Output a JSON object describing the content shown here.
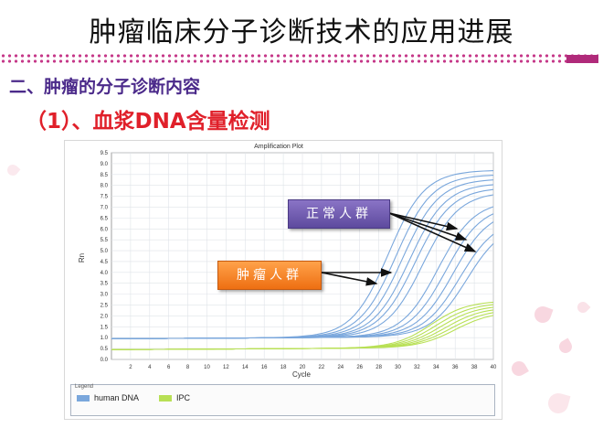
{
  "slide": {
    "title": "肿瘤临床分子诊断技术的应用进展",
    "heading": "二、肿瘤的分子诊断内容",
    "subheading": "（1）、血浆DNA含量检测",
    "accent_color": "#b02a7a"
  },
  "callouts": {
    "normal_label": "正常人群",
    "tumor_label": "肿瘤人群"
  },
  "chart_data": {
    "type": "line",
    "title": "Amplification Plot",
    "xlabel": "Cycle",
    "ylabel": "Rn",
    "xlim": [
      0,
      40
    ],
    "ylim": [
      0,
      9.5
    ],
    "x_ticks": [
      "2",
      "4",
      "6",
      "8",
      "10",
      "12",
      "14",
      "16",
      "18",
      "20",
      "22",
      "24",
      "26",
      "28",
      "30",
      "32",
      "34",
      "36",
      "38",
      "40"
    ],
    "y_ticks": [
      "0.0",
      "0.5",
      "1.0",
      "1.5",
      "2.0",
      "2.5",
      "3.0",
      "3.5",
      "4.0",
      "4.5",
      "5.0",
      "5.5",
      "6.0",
      "6.5",
      "7.0",
      "7.5",
      "8.0",
      "8.5",
      "9.0",
      "9.5"
    ],
    "grid": true,
    "legend_position": "bottom",
    "legend_title": "Legend",
    "series": [
      {
        "name": "human DNA",
        "color": "#7aa7dc",
        "baseline": 0.95,
        "curves": [
          {
            "ct": 29.0,
            "max": 8.6
          },
          {
            "ct": 29.8,
            "max": 8.4
          },
          {
            "ct": 30.5,
            "max": 8.2
          },
          {
            "ct": 31.2,
            "max": 8.0
          },
          {
            "ct": 31.8,
            "max": 7.8
          },
          {
            "ct": 32.6,
            "max": 7.6
          },
          {
            "ct": 34.2,
            "max": 7.2
          },
          {
            "ct": 35.0,
            "max": 7.0
          },
          {
            "ct": 35.8,
            "max": 6.8
          },
          {
            "ct": 36.5,
            "max": 6.4
          },
          {
            "ct": 37.2,
            "max": 6.2
          }
        ]
      },
      {
        "name": "IPC",
        "color": "#b8e055",
        "baseline": 0.45,
        "curves": [
          {
            "ct": 33.5,
            "max": 2.6
          },
          {
            "ct": 34.0,
            "max": 2.5
          },
          {
            "ct": 34.5,
            "max": 2.4
          },
          {
            "ct": 35.0,
            "max": 2.3
          },
          {
            "ct": 35.5,
            "max": 2.2
          },
          {
            "ct": 36.0,
            "max": 2.1
          }
        ]
      }
    ]
  }
}
